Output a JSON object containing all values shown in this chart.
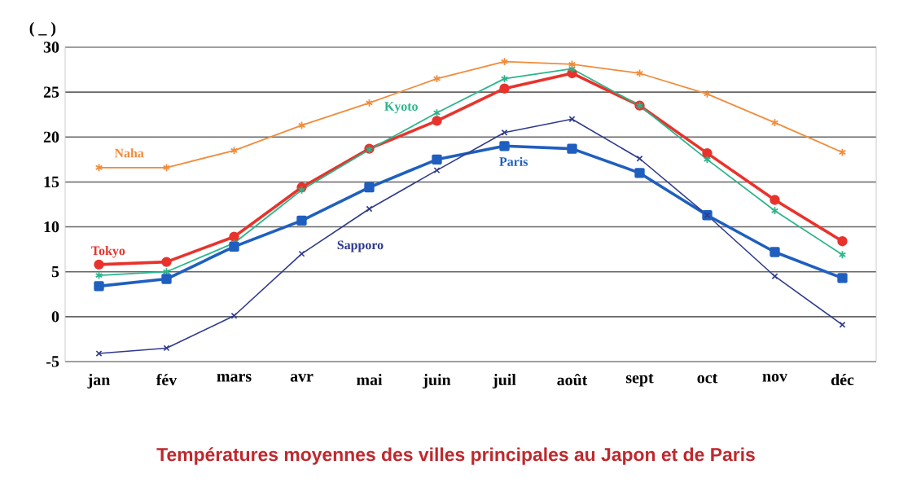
{
  "chart_data": {
    "type": "line",
    "title": "Températures moyennes des villes principales au Japon et de Paris",
    "ylabel": "( _ )",
    "categories": [
      "jan",
      "fév",
      "mars",
      "avr",
      "mai",
      "juin",
      "juil",
      "août",
      "sept",
      "oct",
      "nov",
      "déc"
    ],
    "series": [
      {
        "name": "Tokyo",
        "color": "#e8332c",
        "marker": "circle",
        "values": [
          5.8,
          6.1,
          8.9,
          14.4,
          18.7,
          21.8,
          25.4,
          27.1,
          23.5,
          18.2,
          13.0,
          8.4
        ]
      },
      {
        "name": "Kyoto",
        "color": "#2ab58a",
        "marker": "cross",
        "line_style": "solid",
        "values": [
          4.6,
          5.0,
          8.2,
          14.1,
          18.6,
          22.7,
          26.5,
          27.6,
          23.5,
          17.5,
          11.8,
          6.9
        ]
      },
      {
        "name": "Naha",
        "color": "#f08c3c",
        "marker": "cross",
        "line_style": "solid",
        "values": [
          16.6,
          16.6,
          18.5,
          21.3,
          23.8,
          26.5,
          28.4,
          28.1,
          27.1,
          24.8,
          21.6,
          18.3
        ]
      },
      {
        "name": "Paris",
        "color": "#1f5fbf",
        "marker": "square",
        "values": [
          3.4,
          4.2,
          7.8,
          10.7,
          14.4,
          17.5,
          19.0,
          18.7,
          16.0,
          11.3,
          7.2,
          4.3
        ]
      },
      {
        "name": "Sapporo",
        "color": "#2e3a8c",
        "marker": "cross",
        "values": [
          -4.1,
          -3.5,
          0.1,
          7.0,
          12.0,
          16.3,
          20.5,
          22.0,
          17.6,
          11.3,
          4.5,
          -0.9
        ]
      }
    ],
    "ylim": [
      -5,
      30
    ],
    "yticks": [
      -5,
      0,
      5,
      10,
      15,
      20,
      25,
      30
    ],
    "grid": "y"
  }
}
